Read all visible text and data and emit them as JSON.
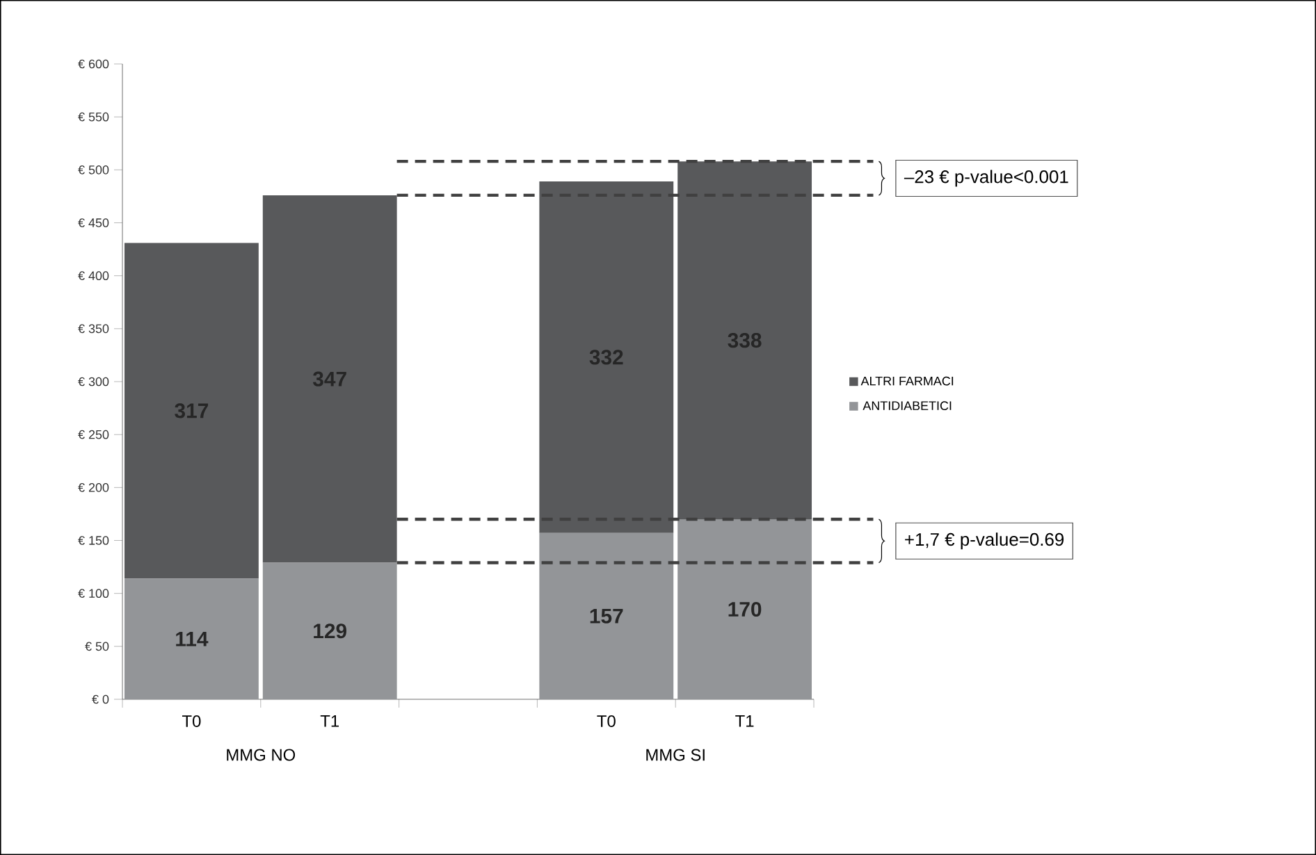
{
  "chart_data": {
    "type": "bar",
    "stacked": true,
    "categories": [
      "T0",
      "T1",
      null,
      "T0",
      "T1"
    ],
    "series": [
      {
        "name": "ANTIDIABETICI",
        "color": "#939598",
        "values": [
          114,
          129,
          null,
          157,
          170
        ]
      },
      {
        "name": "ALTRI FARMACI",
        "color": "#58595b",
        "values": [
          317,
          347,
          null,
          332,
          338
        ]
      }
    ],
    "ylim": [
      0,
      600
    ],
    "yticks": [
      {
        "value": 0,
        "label": "€ 0"
      },
      {
        "value": 50,
        "label": "€ 50"
      },
      {
        "value": 100,
        "label": "€ 100"
      },
      {
        "value": 150,
        "label": "€ 150"
      },
      {
        "value": 200,
        "label": "€ 200"
      },
      {
        "value": 250,
        "label": "€ 250"
      },
      {
        "value": 300,
        "label": "€ 300"
      },
      {
        "value": 350,
        "label": "€ 350"
      },
      {
        "value": 400,
        "label": "€ 400"
      },
      {
        "value": 450,
        "label": "€ 450"
      },
      {
        "value": 500,
        "label": "€ 500"
      },
      {
        "value": 550,
        "label": "€ 550"
      },
      {
        "value": 600,
        "label": "€ 600"
      }
    ],
    "data_labels": true,
    "legend": "right",
    "ref_lines": [
      {
        "axis": "y",
        "value": 508,
        "line_style": "dashed",
        "color": "#404040"
      },
      {
        "axis": "y",
        "value": 476,
        "line_style": "dashed",
        "color": "#404040"
      },
      {
        "axis": "y",
        "value": 170,
        "line_style": "dashed",
        "color": "#404040"
      },
      {
        "axis": "y",
        "value": 129,
        "line_style": "dashed",
        "color": "#404040"
      }
    ],
    "annotations": [
      "MMG NO",
      "MMG SI",
      "–23 € p-value<0.001",
      "+1,7 € p-value=0.69"
    ]
  }
}
